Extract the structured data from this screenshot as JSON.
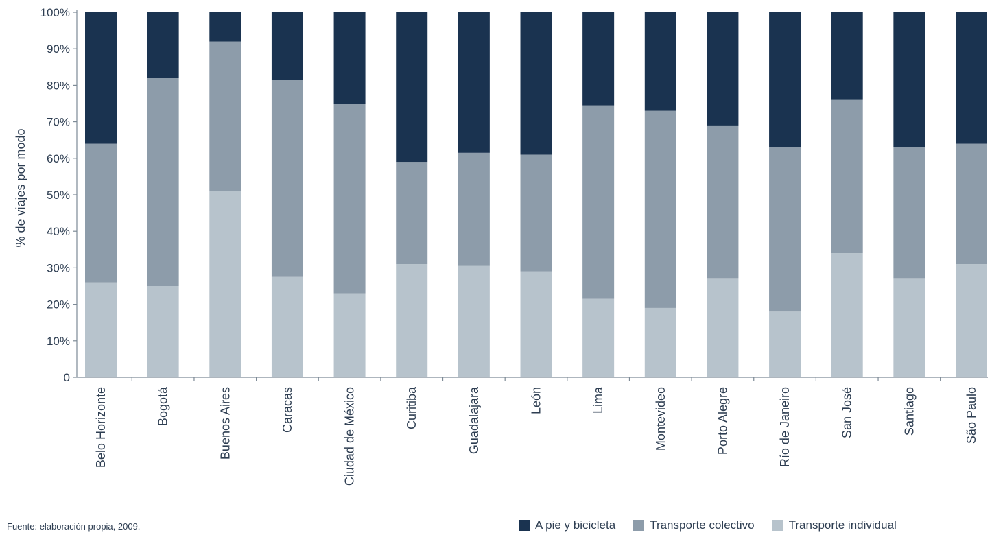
{
  "chart_data": {
    "type": "bar",
    "stacked": true,
    "categories": [
      "Belo Horizonte",
      "Bogotá",
      "Buenos Aires",
      "Caracas",
      "Ciudad de México",
      "Curitiba",
      "Guadalajara",
      "León",
      "Lima",
      "Montevideo",
      "Porto Alegre",
      "Río de Janeiro",
      "San José",
      "Santiago",
      "São Paulo"
    ],
    "series": [
      {
        "name": "Transporte individual",
        "color": "#b7c3cc",
        "values": [
          26,
          25,
          51,
          27.5,
          23,
          31,
          30.5,
          29,
          21.5,
          19,
          27,
          18,
          34,
          27,
          31
        ]
      },
      {
        "name": "Transporte colectivo",
        "color": "#8d9caa",
        "values": [
          38,
          57,
          41,
          54,
          52,
          28,
          31,
          32,
          53,
          54,
          42,
          45,
          42,
          36,
          33
        ]
      },
      {
        "name": "A pie y bicicleta",
        "color": "#1a3350",
        "values": [
          36,
          18,
          8,
          18.5,
          25,
          41,
          38.5,
          39,
          25.5,
          27,
          31,
          37,
          24,
          37,
          36
        ]
      }
    ],
    "ylabel": "% de viajes por modo",
    "xlabel": "",
    "ylim": [
      0,
      100
    ],
    "yticks": [
      "0",
      "10%",
      "20%",
      "30%",
      "40%",
      "50%",
      "60%",
      "70%",
      "80%",
      "90%",
      "100%"
    ],
    "grid": false,
    "legend": {
      "position": "bottom-right",
      "order": [
        "A pie y bicicleta",
        "Transporte colectivo",
        "Transporte individual"
      ]
    }
  },
  "source": "Fuente: elaboración propia, 2009."
}
